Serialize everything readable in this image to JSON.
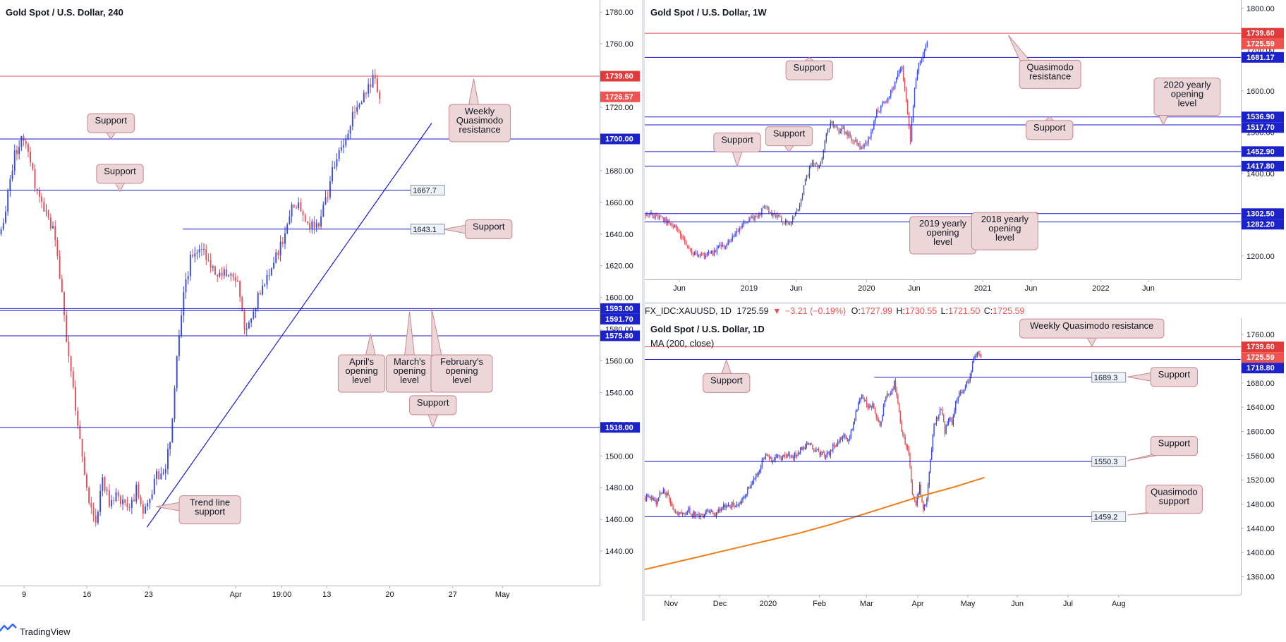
{
  "app": {
    "brand": "TradingView"
  },
  "colors": {
    "bull": "#3c4bd8",
    "bear": "#e0505a",
    "support": "#1a1acd",
    "resistance": "#e0505a",
    "callout_fill": "#ecd6d8",
    "callout_stroke": "#c8888f",
    "ma": "#ef7f1a"
  },
  "header": {
    "symbol": "FX_IDC:XAUUSD, 1D",
    "last": "1725.59",
    "arrow": "▼",
    "change": "−3.21 (−0.19%)",
    "o_label": "O:",
    "o": "1727.99",
    "h_label": "H:",
    "h": "1730.55",
    "l_label": "L:",
    "l": "1721.50",
    "c_label": "C:",
    "c": "1725.59"
  },
  "panes": {
    "h4": {
      "title": "Gold Spot / U.S. Dollar, 240"
    },
    "weekly": {
      "title": "Gold Spot / U.S. Dollar, 1W"
    },
    "daily": {
      "title": "Gold Spot / U.S. Dollar, 1D",
      "indicator": "MA (200, close)"
    }
  },
  "chart_data": [
    {
      "id": "h4",
      "type": "candlestick",
      "title": "Gold Spot / U.S. Dollar, 240",
      "ylim": [
        1420,
        1785
      ],
      "yticks": [
        1440,
        1460,
        1480,
        1500,
        1520,
        1540,
        1560,
        1580,
        1600,
        1620,
        1640,
        1660,
        1680,
        1700,
        1720,
        1740,
        1760,
        1780
      ],
      "xticks": [
        "9",
        "16",
        "23",
        "Apr",
        "19:00",
        "13",
        "20",
        "27",
        "May"
      ],
      "tag_format": "fixed2",
      "close_series": [
        1640,
        1665,
        1690,
        1702,
        1690,
        1672,
        1660,
        1650,
        1638,
        1600,
        1560,
        1530,
        1500,
        1470,
        1455,
        1485,
        1470,
        1475,
        1472,
        1465,
        1480,
        1462,
        1470,
        1490,
        1486,
        1510,
        1560,
        1600,
        1625,
        1628,
        1630,
        1622,
        1615,
        1618,
        1612,
        1608,
        1580,
        1590,
        1600,
        1610,
        1620,
        1628,
        1640,
        1660,
        1658,
        1650,
        1645,
        1648,
        1660,
        1680,
        1690,
        1700,
        1715,
        1725,
        1728,
        1740,
        1727
      ],
      "candle_span": [
        0.0,
        0.635
      ],
      "levels": [
        {
          "price": 1739.6,
          "label": "1739.60",
          "kind": "resistance",
          "tag": "axis"
        },
        {
          "price": 1726.57,
          "label": "1726.57",
          "kind": "last",
          "tag": "axis"
        },
        {
          "price": 1700.0,
          "label": "1700.00",
          "kind": "support",
          "tag": "axis"
        },
        {
          "price": 1667.7,
          "label": "1667.7",
          "kind": "support",
          "tag": "box",
          "end": 0.685
        },
        {
          "price": 1643.1,
          "label": "1643.1",
          "kind": "support",
          "tag": "box",
          "start": 0.305,
          "end": 0.685
        },
        {
          "price": 1593.0,
          "label": "1593.00",
          "kind": "support",
          "tag": "axis"
        },
        {
          "price": 1591.7,
          "label": "1591.70",
          "kind": "support",
          "tag": "axis"
        },
        {
          "price": 1575.8,
          "label": "1575.80",
          "kind": "support",
          "tag": "axis"
        },
        {
          "price": 1518.0,
          "label": "1518.00",
          "kind": "support",
          "tag": "axis"
        }
      ],
      "trendline": {
        "from": [
          0.245,
          1455
        ],
        "to": [
          0.72,
          1710
        ]
      },
      "callouts": [
        {
          "text": [
            "Weekly",
            "Quasimodo",
            "resistance"
          ],
          "x": 0.8,
          "price": 1710,
          "tip": [
            0.79,
            1738
          ]
        },
        {
          "text": [
            "Support"
          ],
          "x": 0.185,
          "price": 1710,
          "tip": [
            0.185,
            1700
          ]
        },
        {
          "text": [
            "Support"
          ],
          "x": 0.2,
          "price": 1678,
          "tip": [
            0.2,
            1667
          ]
        },
        {
          "text": [
            "Support"
          ],
          "x": 0.815,
          "price": 1643,
          "tip": [
            0.74,
            1643
          ]
        },
        {
          "text": [
            "April's",
            "opening",
            "level"
          ],
          "x": 0.603,
          "price": 1552,
          "tip": [
            0.618,
            1577
          ]
        },
        {
          "text": [
            "March's",
            "opening",
            "level"
          ],
          "x": 0.683,
          "price": 1552,
          "tip": [
            0.683,
            1591
          ]
        },
        {
          "text": [
            "February's",
            "opening",
            "level"
          ],
          "x": 0.77,
          "price": 1552,
          "tip": [
            0.72,
            1593
          ]
        },
        {
          "text": [
            "Support"
          ],
          "x": 0.722,
          "price": 1532,
          "tip": [
            0.722,
            1518
          ]
        },
        {
          "text": [
            "Trend line",
            "support"
          ],
          "x": 0.35,
          "price": 1466,
          "tip": [
            0.26,
            1468
          ]
        }
      ]
    },
    {
      "id": "weekly",
      "type": "candlestick",
      "title": "Gold Spot / U.S. Dollar, 1W",
      "ylim": [
        1150,
        1810
      ],
      "yticks": [
        1200,
        1300,
        1400,
        1500,
        1600,
        1700,
        1800
      ],
      "xticks": [
        "Jun",
        "2019",
        "Jun",
        "2020",
        "Jun",
        "2021",
        "Jun",
        "2022",
        "Jun"
      ],
      "tag_format": "fixed2",
      "close_series": [
        1300,
        1305,
        1298,
        1295,
        1290,
        1285,
        1280,
        1270,
        1255,
        1240,
        1225,
        1210,
        1205,
        1200,
        1202,
        1212,
        1205,
        1215,
        1225,
        1228,
        1235,
        1250,
        1260,
        1275,
        1285,
        1290,
        1290,
        1300,
        1315,
        1318,
        1300,
        1295,
        1290,
        1285,
        1280,
        1290,
        1310,
        1340,
        1380,
        1410,
        1425,
        1415,
        1440,
        1495,
        1525,
        1510,
        1500,
        1505,
        1495,
        1485,
        1475,
        1465,
        1470,
        1480,
        1510,
        1550,
        1560,
        1575,
        1590,
        1610,
        1640,
        1655,
        1570,
        1480,
        1610,
        1665,
        1690,
        1725
      ],
      "candle_span": [
        0.0,
        0.475
      ],
      "levels": [
        {
          "price": 1739.6,
          "label": "1739.60",
          "kind": "resistance",
          "tag": "axis"
        },
        {
          "price": 1725.59,
          "label": "1725.59",
          "kind": "last",
          "tag": "axis"
        },
        {
          "price": 1681.17,
          "label": "1681.17",
          "kind": "support",
          "tag": "axis"
        },
        {
          "price": 1536.9,
          "label": "1536.90",
          "kind": "support",
          "tag": "axis"
        },
        {
          "price": 1517.7,
          "label": "1517.70",
          "kind": "support",
          "tag": "axis"
        },
        {
          "price": 1452.9,
          "label": "1452.90",
          "kind": "support",
          "tag": "axis"
        },
        {
          "price": 1417.8,
          "label": "1417.80",
          "kind": "support",
          "tag": "axis"
        },
        {
          "price": 1302.5,
          "label": "1302.50",
          "kind": "support",
          "tag": "axis"
        },
        {
          "price": 1282.2,
          "label": "1282.20",
          "kind": "support",
          "tag": "axis"
        }
      ],
      "callouts": [
        {
          "text": [
            "Quasimodo",
            "resistance"
          ],
          "x": 0.68,
          "price": 1640,
          "tip": [
            0.61,
            1735
          ]
        },
        {
          "text": [
            "Support"
          ],
          "x": 0.276,
          "price": 1650,
          "tip": [
            0.276,
            1681
          ]
        },
        {
          "text": [
            "2020 yearly",
            "opening",
            "level"
          ],
          "x": 0.91,
          "price": 1586,
          "tip": [
            0.87,
            1517
          ]
        },
        {
          "text": [
            "Support"
          ],
          "x": 0.679,
          "price": 1505,
          "tip": [
            0.679,
            1537
          ]
        },
        {
          "text": [
            "Support"
          ],
          "x": 0.242,
          "price": 1490,
          "tip": [
            0.242,
            1452
          ]
        },
        {
          "text": [
            "Support"
          ],
          "x": 0.155,
          "price": 1475,
          "tip": [
            0.155,
            1417
          ]
        },
        {
          "text": [
            "2019 yearly",
            "opening",
            "level"
          ],
          "x": 0.5,
          "price": 1250,
          "tip": [
            0.5,
            1282
          ]
        },
        {
          "text": [
            "2018 yearly",
            "opening",
            "level"
          ],
          "x": 0.604,
          "price": 1260,
          "tip": [
            0.604,
            1302
          ]
        }
      ]
    },
    {
      "id": "daily",
      "type": "candlestick",
      "title": "Gold Spot / U.S. Dollar, 1D",
      "ylim": [
        1335,
        1780
      ],
      "yticks": [
        1360,
        1400,
        1440,
        1480,
        1520,
        1560,
        1600,
        1640,
        1680,
        1720,
        1760
      ],
      "xticks": [
        "Nov",
        "Dec",
        "2020",
        "Feb",
        "Mar",
        "Apr",
        "May",
        "Jun",
        "Jul",
        "Aug"
      ],
      "tag_format": "fixed2",
      "close_series": [
        1490,
        1495,
        1488,
        1480,
        1500,
        1502,
        1495,
        1485,
        1470,
        1465,
        1462,
        1465,
        1470,
        1462,
        1465,
        1463,
        1460,
        1465,
        1470,
        1462,
        1468,
        1474,
        1478,
        1475,
        1480,
        1478,
        1482,
        1488,
        1500,
        1510,
        1520,
        1530,
        1545,
        1555,
        1560,
        1550,
        1555,
        1560,
        1555,
        1560,
        1562,
        1558,
        1565,
        1570,
        1575,
        1580,
        1575,
        1570,
        1565,
        1565,
        1560,
        1565,
        1575,
        1580,
        1590,
        1595,
        1580,
        1600,
        1620,
        1645,
        1660,
        1650,
        1640,
        1645,
        1620,
        1610,
        1640,
        1665,
        1660,
        1680,
        1645,
        1600,
        1580,
        1560,
        1500,
        1480,
        1510,
        1470,
        1490,
        1550,
        1610,
        1625,
        1640,
        1600,
        1620,
        1615,
        1650,
        1660,
        1665,
        1680,
        1690,
        1720,
        1730,
        1725
      ],
      "candle_span": [
        0.0,
        0.565
      ],
      "ma200": [
        1372,
        1384,
        1396,
        1408,
        1420,
        1432,
        1446,
        1462,
        1478,
        1494,
        1508,
        1524
      ],
      "ma_span": [
        0.0,
        0.57
      ],
      "levels": [
        {
          "price": 1739.6,
          "label": "1739.60",
          "kind": "resistance",
          "tag": "axis"
        },
        {
          "price": 1725.59,
          "label": "1725.59",
          "kind": "last",
          "tag": "axis"
        },
        {
          "price": 1718.8,
          "label": "1718.80",
          "kind": "support",
          "tag": "axis"
        },
        {
          "price": 1689.3,
          "label": "1689.3",
          "kind": "support",
          "tag": "box",
          "start": 0.385,
          "end": 0.75
        },
        {
          "price": 1550.3,
          "label": "1550.3",
          "kind": "support",
          "tag": "box",
          "end": 0.75
        },
        {
          "price": 1459.2,
          "label": "1459.2",
          "kind": "support",
          "tag": "box",
          "end": 0.75
        }
      ],
      "callouts": [
        {
          "text": [
            "Weekly Quasimodo resistance"
          ],
          "x": 0.75,
          "price": 1770,
          "tip": [
            0.75,
            1741
          ]
        },
        {
          "text": [
            "Support"
          ],
          "x": 0.137,
          "price": 1680,
          "tip": [
            0.137,
            1718
          ]
        },
        {
          "text": [
            "Support"
          ],
          "x": 0.888,
          "price": 1690,
          "tip": [
            0.81,
            1690
          ]
        },
        {
          "text": [
            "Support"
          ],
          "x": 0.888,
          "price": 1576,
          "tip": [
            0.81,
            1552
          ]
        },
        {
          "text": [
            "Quasimodo",
            "support"
          ],
          "x": 0.888,
          "price": 1488,
          "tip": [
            0.81,
            1462
          ]
        }
      ]
    }
  ]
}
